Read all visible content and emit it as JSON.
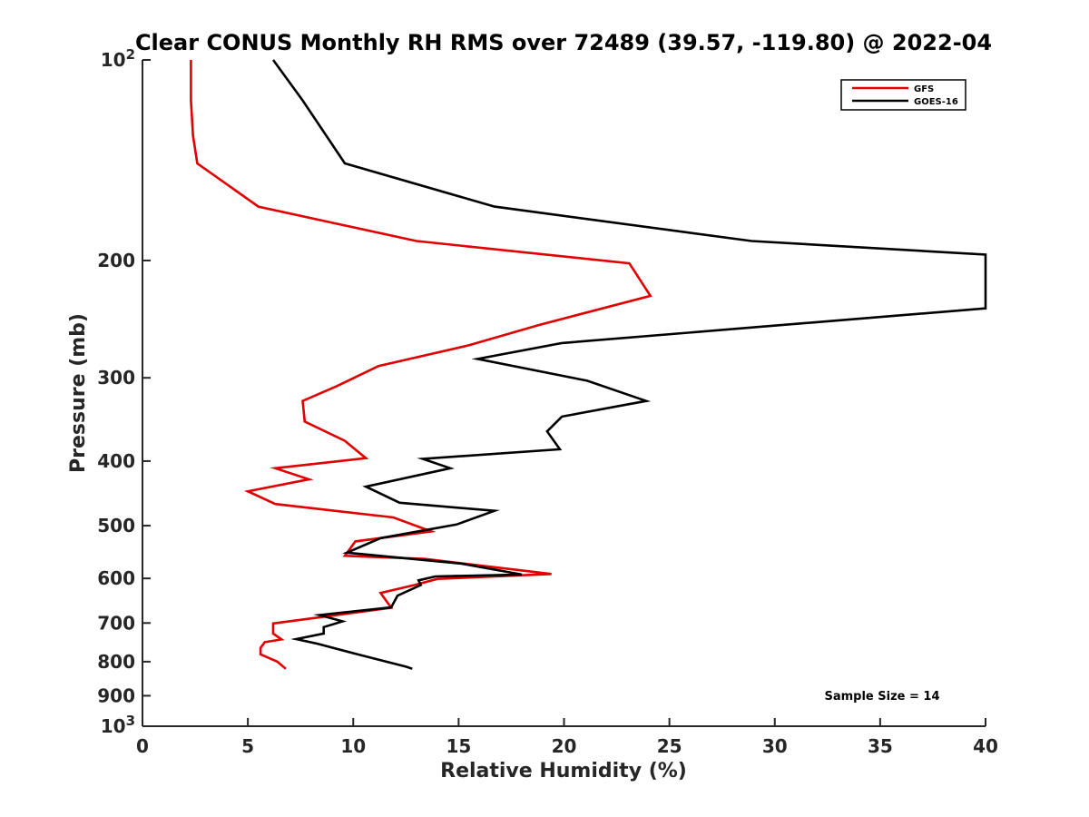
{
  "chart_data": {
    "type": "line",
    "title": "Clear CONUS Monthly RH RMS over 72489 (39.57, -119.80) @ 2022-04",
    "xlabel": "Relative Humidity (%)",
    "ylabel": "Pressure (mb)",
    "xlim": [
      0,
      40
    ],
    "ylim": [
      100,
      1000
    ],
    "yscale": "log",
    "y_reversed": true,
    "grid": false,
    "legend_position": "top-right",
    "x_ticks": [
      0,
      5,
      10,
      15,
      20,
      25,
      30,
      35,
      40
    ],
    "x_tick_labels": [
      "0",
      "5",
      "10",
      "15",
      "20",
      "25",
      "30",
      "35",
      "40"
    ],
    "y_ticks": [
      100,
      200,
      300,
      400,
      500,
      600,
      700,
      800,
      900,
      1000
    ],
    "y_tick_labels": [
      {
        "base": "10",
        "exp": "2"
      },
      {
        "base": "200",
        "exp": ""
      },
      {
        "base": "300",
        "exp": ""
      },
      {
        "base": "400",
        "exp": ""
      },
      {
        "base": "500",
        "exp": ""
      },
      {
        "base": "600",
        "exp": ""
      },
      {
        "base": "700",
        "exp": ""
      },
      {
        "base": "800",
        "exp": ""
      },
      {
        "base": "900",
        "exp": ""
      },
      {
        "base": "10",
        "exp": "3"
      }
    ],
    "annotation": "Sample Size = 14",
    "series": [
      {
        "name": "GFS",
        "color": "#e00000",
        "x": [
          2.3,
          2.3,
          2.4,
          2.6,
          5.5,
          13.0,
          23.1,
          24.1,
          18.8,
          15.5,
          11.2,
          9.2,
          7.6,
          7.7,
          9.6,
          10.6,
          6.3,
          7.9,
          5.0,
          6.3,
          11.9,
          13.7,
          10.1,
          9.6,
          13.4,
          19.4,
          14.0,
          12.9,
          11.3,
          11.8,
          6.2,
          6.2,
          6.6,
          5.8,
          5.6,
          5.6,
          6.4,
          6.8
        ],
        "y": [
          100,
          115,
          130,
          143,
          166,
          187,
          202,
          226,
          250,
          268,
          288,
          309,
          325,
          349,
          373,
          396,
          410,
          426,
          444,
          464,
          486,
          510,
          528,
          555,
          561,
          591,
          601,
          614,
          631,
          664,
          701,
          726,
          741,
          748,
          763,
          780,
          800,
          820
        ]
      },
      {
        "name": "GOES-16",
        "color": "#000000",
        "x": [
          6.2,
          7.6,
          9.6,
          16.7,
          28.9,
          40.0,
          40.0,
          19.9,
          15.9,
          21.1,
          23.9,
          19.9,
          19.2,
          19.8,
          13.3,
          14.6,
          10.6,
          12.2,
          16.7,
          14.9,
          11.3,
          9.7,
          15.1,
          18.0,
          13.9,
          13.1,
          13.2,
          12.1,
          11.8,
          8.4,
          9.5,
          8.6,
          8.6,
          7.3,
          8.3,
          10.2,
          12.5,
          12.8
        ],
        "y": [
          100,
          115,
          143,
          166,
          187,
          196,
          236,
          266,
          281,
          303,
          325,
          343,
          361,
          384,
          397,
          410,
          437,
          462,
          475,
          498,
          522,
          549,
          570,
          592,
          596,
          604,
          614,
          637,
          663,
          681,
          696,
          710,
          726,
          740,
          752,
          780,
          814,
          820
        ]
      }
    ]
  }
}
